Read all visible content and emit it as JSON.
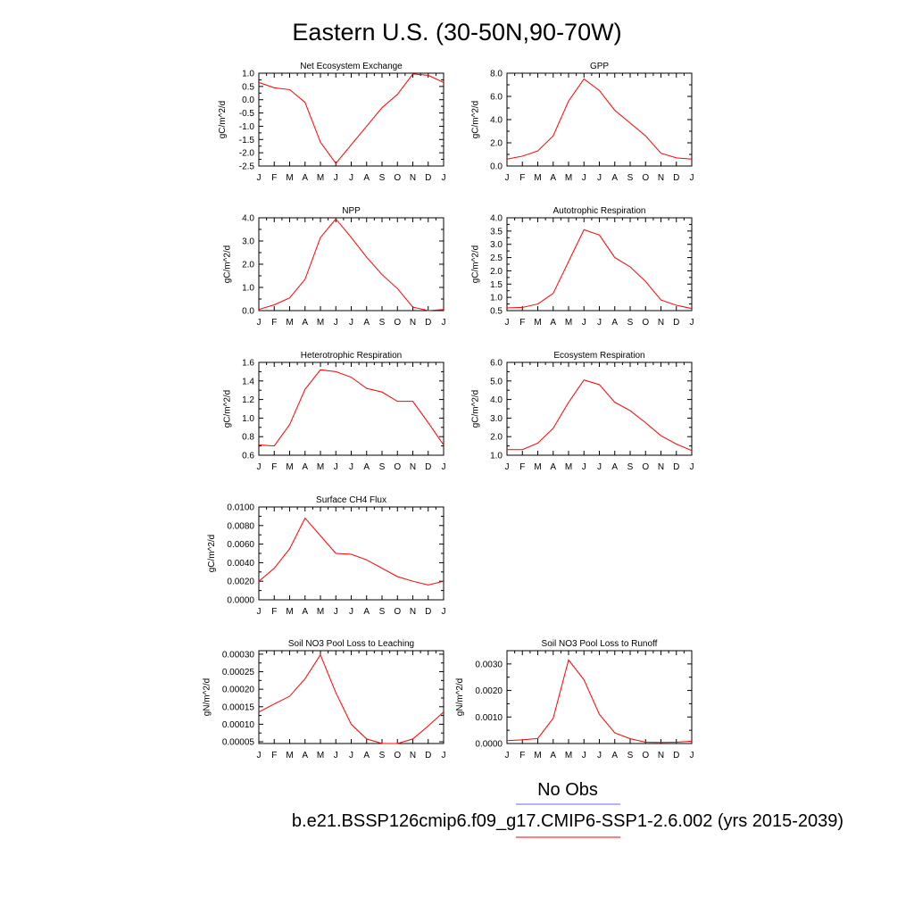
{
  "figure": {
    "title": "Eastern U.S. (30-50N,90-70W)",
    "legend": {
      "obs_label": "No Obs",
      "obs_color": "#6a6ae0",
      "model_label": "b.e21.BSSP126cmip6.f09_g17.CMIP6-SSP1-2.6.002 (yrs 2015-2039)",
      "model_color": "#ff0000"
    }
  },
  "chart_data": [
    {
      "type": "line",
      "title": "Net Ecosystem Exchange",
      "ylabel": "gC/m^2/d",
      "x": [
        "J",
        "F",
        "M",
        "A",
        "M",
        "J",
        "J",
        "A",
        "S",
        "O",
        "N",
        "D",
        "J"
      ],
      "series": [
        {
          "values": [
            0.65,
            0.45,
            0.38,
            -0.1,
            -1.6,
            -2.4,
            -1.7,
            -1.0,
            -0.3,
            0.2,
            0.97,
            0.92,
            0.65
          ],
          "color": "#ff0000"
        }
      ],
      "ylim": [
        -2.5,
        1.0
      ],
      "yticks": [
        1.0,
        0.5,
        0.0,
        -0.5,
        -1.0,
        -1.5,
        -2.0,
        -2.5
      ],
      "ytick_labels": [
        "1.0",
        "0.5",
        "0.0",
        "-0.5",
        "-1.0",
        "-1.5",
        "-2.0",
        "-2.5"
      ]
    },
    {
      "type": "line",
      "title": "GPP",
      "ylabel": "gC/m^2/d",
      "x": [
        "J",
        "F",
        "M",
        "A",
        "M",
        "J",
        "J",
        "A",
        "S",
        "O",
        "N",
        "D",
        "J"
      ],
      "series": [
        {
          "values": [
            0.6,
            0.85,
            1.3,
            2.6,
            5.6,
            7.5,
            6.5,
            4.8,
            3.7,
            2.6,
            1.1,
            0.7,
            0.6
          ],
          "color": "#ff0000"
        }
      ],
      "ylim": [
        0,
        8
      ],
      "yticks": [
        8,
        6,
        4,
        2,
        0
      ],
      "ytick_labels": [
        "8.0",
        "6.0",
        "4.0",
        "2.0",
        "0.0"
      ]
    },
    {
      "type": "line",
      "title": "NPP",
      "ylabel": "gC/m^2/d",
      "x": [
        "J",
        "F",
        "M",
        "A",
        "M",
        "J",
        "J",
        "A",
        "S",
        "O",
        "N",
        "D",
        "J"
      ],
      "series": [
        {
          "values": [
            0.05,
            0.25,
            0.55,
            1.35,
            3.15,
            3.95,
            3.15,
            2.3,
            1.55,
            0.95,
            0.15,
            0.0,
            0.05
          ],
          "color": "#ff0000"
        }
      ],
      "ylim": [
        0,
        4
      ],
      "yticks": [
        4,
        3,
        2,
        1,
        0
      ],
      "ytick_labels": [
        "4.0",
        "3.0",
        "2.0",
        "1.0",
        "0.0"
      ]
    },
    {
      "type": "line",
      "title": "Autotrophic Respiration",
      "ylabel": "gC/m^2/d",
      "x": [
        "J",
        "F",
        "M",
        "A",
        "M",
        "J",
        "J",
        "A",
        "S",
        "O",
        "N",
        "D",
        "J"
      ],
      "series": [
        {
          "values": [
            0.6,
            0.62,
            0.75,
            1.15,
            2.35,
            3.55,
            3.35,
            2.5,
            2.15,
            1.6,
            0.9,
            0.7,
            0.58
          ],
          "color": "#ff0000"
        }
      ],
      "ylim": [
        0.5,
        4.0
      ],
      "yticks": [
        4.0,
        3.5,
        3.0,
        2.5,
        2.0,
        1.5,
        1.0,
        0.5
      ],
      "ytick_labels": [
        "4.0",
        "3.5",
        "3.0",
        "2.5",
        "2.0",
        "1.5",
        "1.0",
        "0.5"
      ]
    },
    {
      "type": "line",
      "title": "Heterotrophic Respiration",
      "ylabel": "gC/m^2/d",
      "x": [
        "J",
        "F",
        "M",
        "A",
        "M",
        "J",
        "J",
        "A",
        "S",
        "O",
        "N",
        "D",
        "J"
      ],
      "series": [
        {
          "values": [
            0.71,
            0.7,
            0.93,
            1.31,
            1.52,
            1.5,
            1.44,
            1.32,
            1.28,
            1.18,
            1.18,
            0.95,
            0.71
          ],
          "color": "#ff0000"
        }
      ],
      "ylim": [
        0.6,
        1.6
      ],
      "yticks": [
        1.6,
        1.4,
        1.2,
        1.0,
        0.8,
        0.6
      ],
      "ytick_labels": [
        "1.6",
        "1.4",
        "1.2",
        "1.0",
        "0.8",
        "0.6"
      ]
    },
    {
      "type": "line",
      "title": "Ecosystem Respiration",
      "ylabel": "gC/m^2/d",
      "x": [
        "J",
        "F",
        "M",
        "A",
        "M",
        "J",
        "J",
        "A",
        "S",
        "O",
        "N",
        "D",
        "J"
      ],
      "series": [
        {
          "values": [
            1.3,
            1.3,
            1.65,
            2.45,
            3.85,
            5.05,
            4.8,
            3.85,
            3.4,
            2.75,
            2.05,
            1.6,
            1.25
          ],
          "color": "#ff0000"
        }
      ],
      "ylim": [
        1,
        6
      ],
      "yticks": [
        6,
        5,
        4,
        3,
        2,
        1
      ],
      "ytick_labels": [
        "6.0",
        "5.0",
        "4.0",
        "3.0",
        "2.0",
        "1.0"
      ]
    },
    {
      "type": "line",
      "title": "Surface CH4 Flux",
      "ylabel": "gC/m^2/d",
      "x": [
        "J",
        "F",
        "M",
        "A",
        "M",
        "J",
        "J",
        "A",
        "S",
        "O",
        "N",
        "D",
        "J"
      ],
      "series": [
        {
          "values": [
            0.002,
            0.0034,
            0.0055,
            0.0088,
            0.0069,
            0.005,
            0.0049,
            0.0043,
            0.0034,
            0.0025,
            0.002,
            0.0016,
            0.002
          ],
          "color": "#ff0000"
        }
      ],
      "ylim": [
        0,
        0.01
      ],
      "yticks": [
        0.01,
        0.008,
        0.006,
        0.004,
        0.002,
        0
      ],
      "ytick_labels": [
        "0.0100",
        "0.0080",
        "0.0060",
        "0.0040",
        "0.0020",
        "0.0000"
      ]
    },
    {
      "type": "line",
      "title": "Soil NO3 Pool Loss to Leaching",
      "ylabel": "gN/m^2/d",
      "x": [
        "J",
        "F",
        "M",
        "A",
        "M",
        "J",
        "J",
        "A",
        "S",
        "O",
        "N",
        "D",
        "J"
      ],
      "series": [
        {
          "values": [
            0.000135,
            0.000158,
            0.00018,
            0.00023,
            0.000298,
            0.00019,
            0.0001,
            5.8e-05,
            4.5e-05,
            4.5e-05,
            5.8e-05,
            9.5e-05,
            0.000135
          ],
          "color": "#ff0000"
        }
      ],
      "ylim": [
        4.5e-05,
        0.00031
      ],
      "yticks": [
        0.0003,
        0.00025,
        0.0002,
        0.00015,
        0.0001,
        5e-05
      ],
      "ytick_labels": [
        "0.00030",
        "0.00025",
        "0.00020",
        "0.00015",
        "0.00010",
        "0.00005"
      ]
    },
    {
      "type": "line",
      "title": "Soil NO3 Pool Loss to Runoff",
      "ylabel": "gN/m^2/d",
      "x": [
        "J",
        "F",
        "M",
        "A",
        "M",
        "J",
        "J",
        "A",
        "S",
        "O",
        "N",
        "D",
        "J"
      ],
      "series": [
        {
          "values": [
            0.00011,
            0.00014,
            0.00019,
            0.00095,
            0.00315,
            0.0024,
            0.0011,
            0.0004,
            0.00018,
            5e-05,
            4e-05,
            5e-05,
            9e-05
          ],
          "color": "#ff0000"
        }
      ],
      "ylim": [
        0,
        0.0035
      ],
      "yticks": [
        0.003,
        0.002,
        0.001,
        0
      ],
      "ytick_labels": [
        "0.0030",
        "0.0020",
        "0.0010",
        "0.0000"
      ]
    }
  ]
}
